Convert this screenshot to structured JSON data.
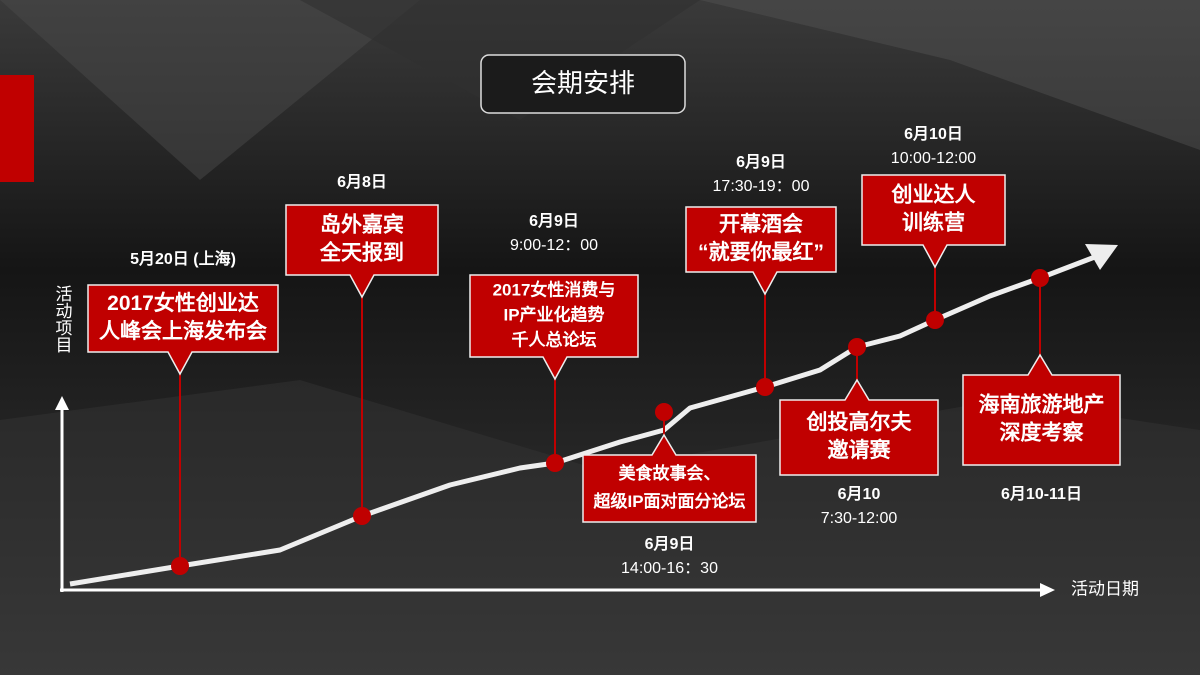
{
  "title": "会期安排",
  "axes": {
    "y_label": "活动项目",
    "x_label": "活动日期"
  },
  "events": [
    {
      "date": "5月20日 (上海)",
      "label_lines": [
        "2017女性创业达",
        "人峰会上海发布会"
      ]
    },
    {
      "date": "6月8日",
      "label_lines": [
        "岛外嘉宾",
        "全天报到"
      ]
    },
    {
      "date": "6月9日",
      "time": "9:00-12：00",
      "label_lines": [
        "2017女性消费与",
        "IP产业化趋势",
        "千人总论坛"
      ]
    },
    {
      "date": "6月9日",
      "time": "14:00-16：30",
      "label_lines": [
        "美食故事会、",
        "超级IP面对面分论坛"
      ]
    },
    {
      "date": "6月9日",
      "time": "17:30-19：00",
      "label_lines": [
        "开幕酒会",
        "“就要你最红”"
      ]
    },
    {
      "date": "6月10",
      "time": "7:30-12:00",
      "label_lines": [
        "创投高尔夫",
        "邀请赛"
      ]
    },
    {
      "date": "6月10日",
      "time": "10:00-12:00",
      "label_lines": [
        "创业达人",
        "训练营"
      ]
    },
    {
      "date": "6月10-11日",
      "label_lines": [
        "海南旅游地产",
        "深度考察"
      ]
    }
  ]
}
